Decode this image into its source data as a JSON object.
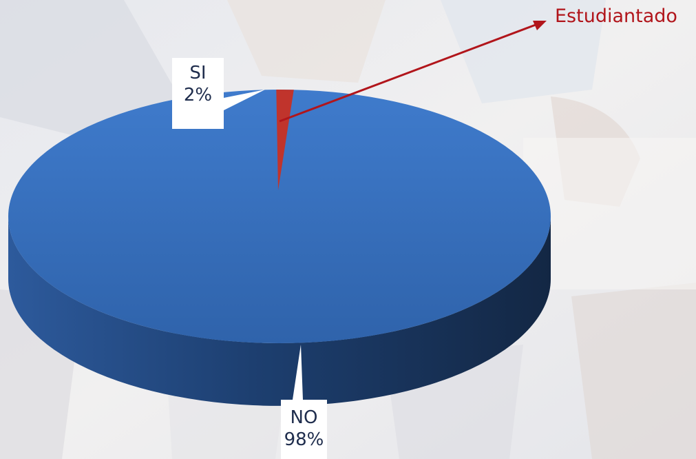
{
  "chart_data": {
    "type": "pie",
    "title": "",
    "slices": [
      {
        "label": "SI",
        "value": 2,
        "value_label": "2%",
        "color": "#c0342c"
      },
      {
        "label": "NO",
        "value": 98,
        "value_label": "98%",
        "color": "#3a72c4"
      }
    ],
    "annotation": "Estudiantado",
    "annotation_color": "#b1151b",
    "style": "3d"
  }
}
